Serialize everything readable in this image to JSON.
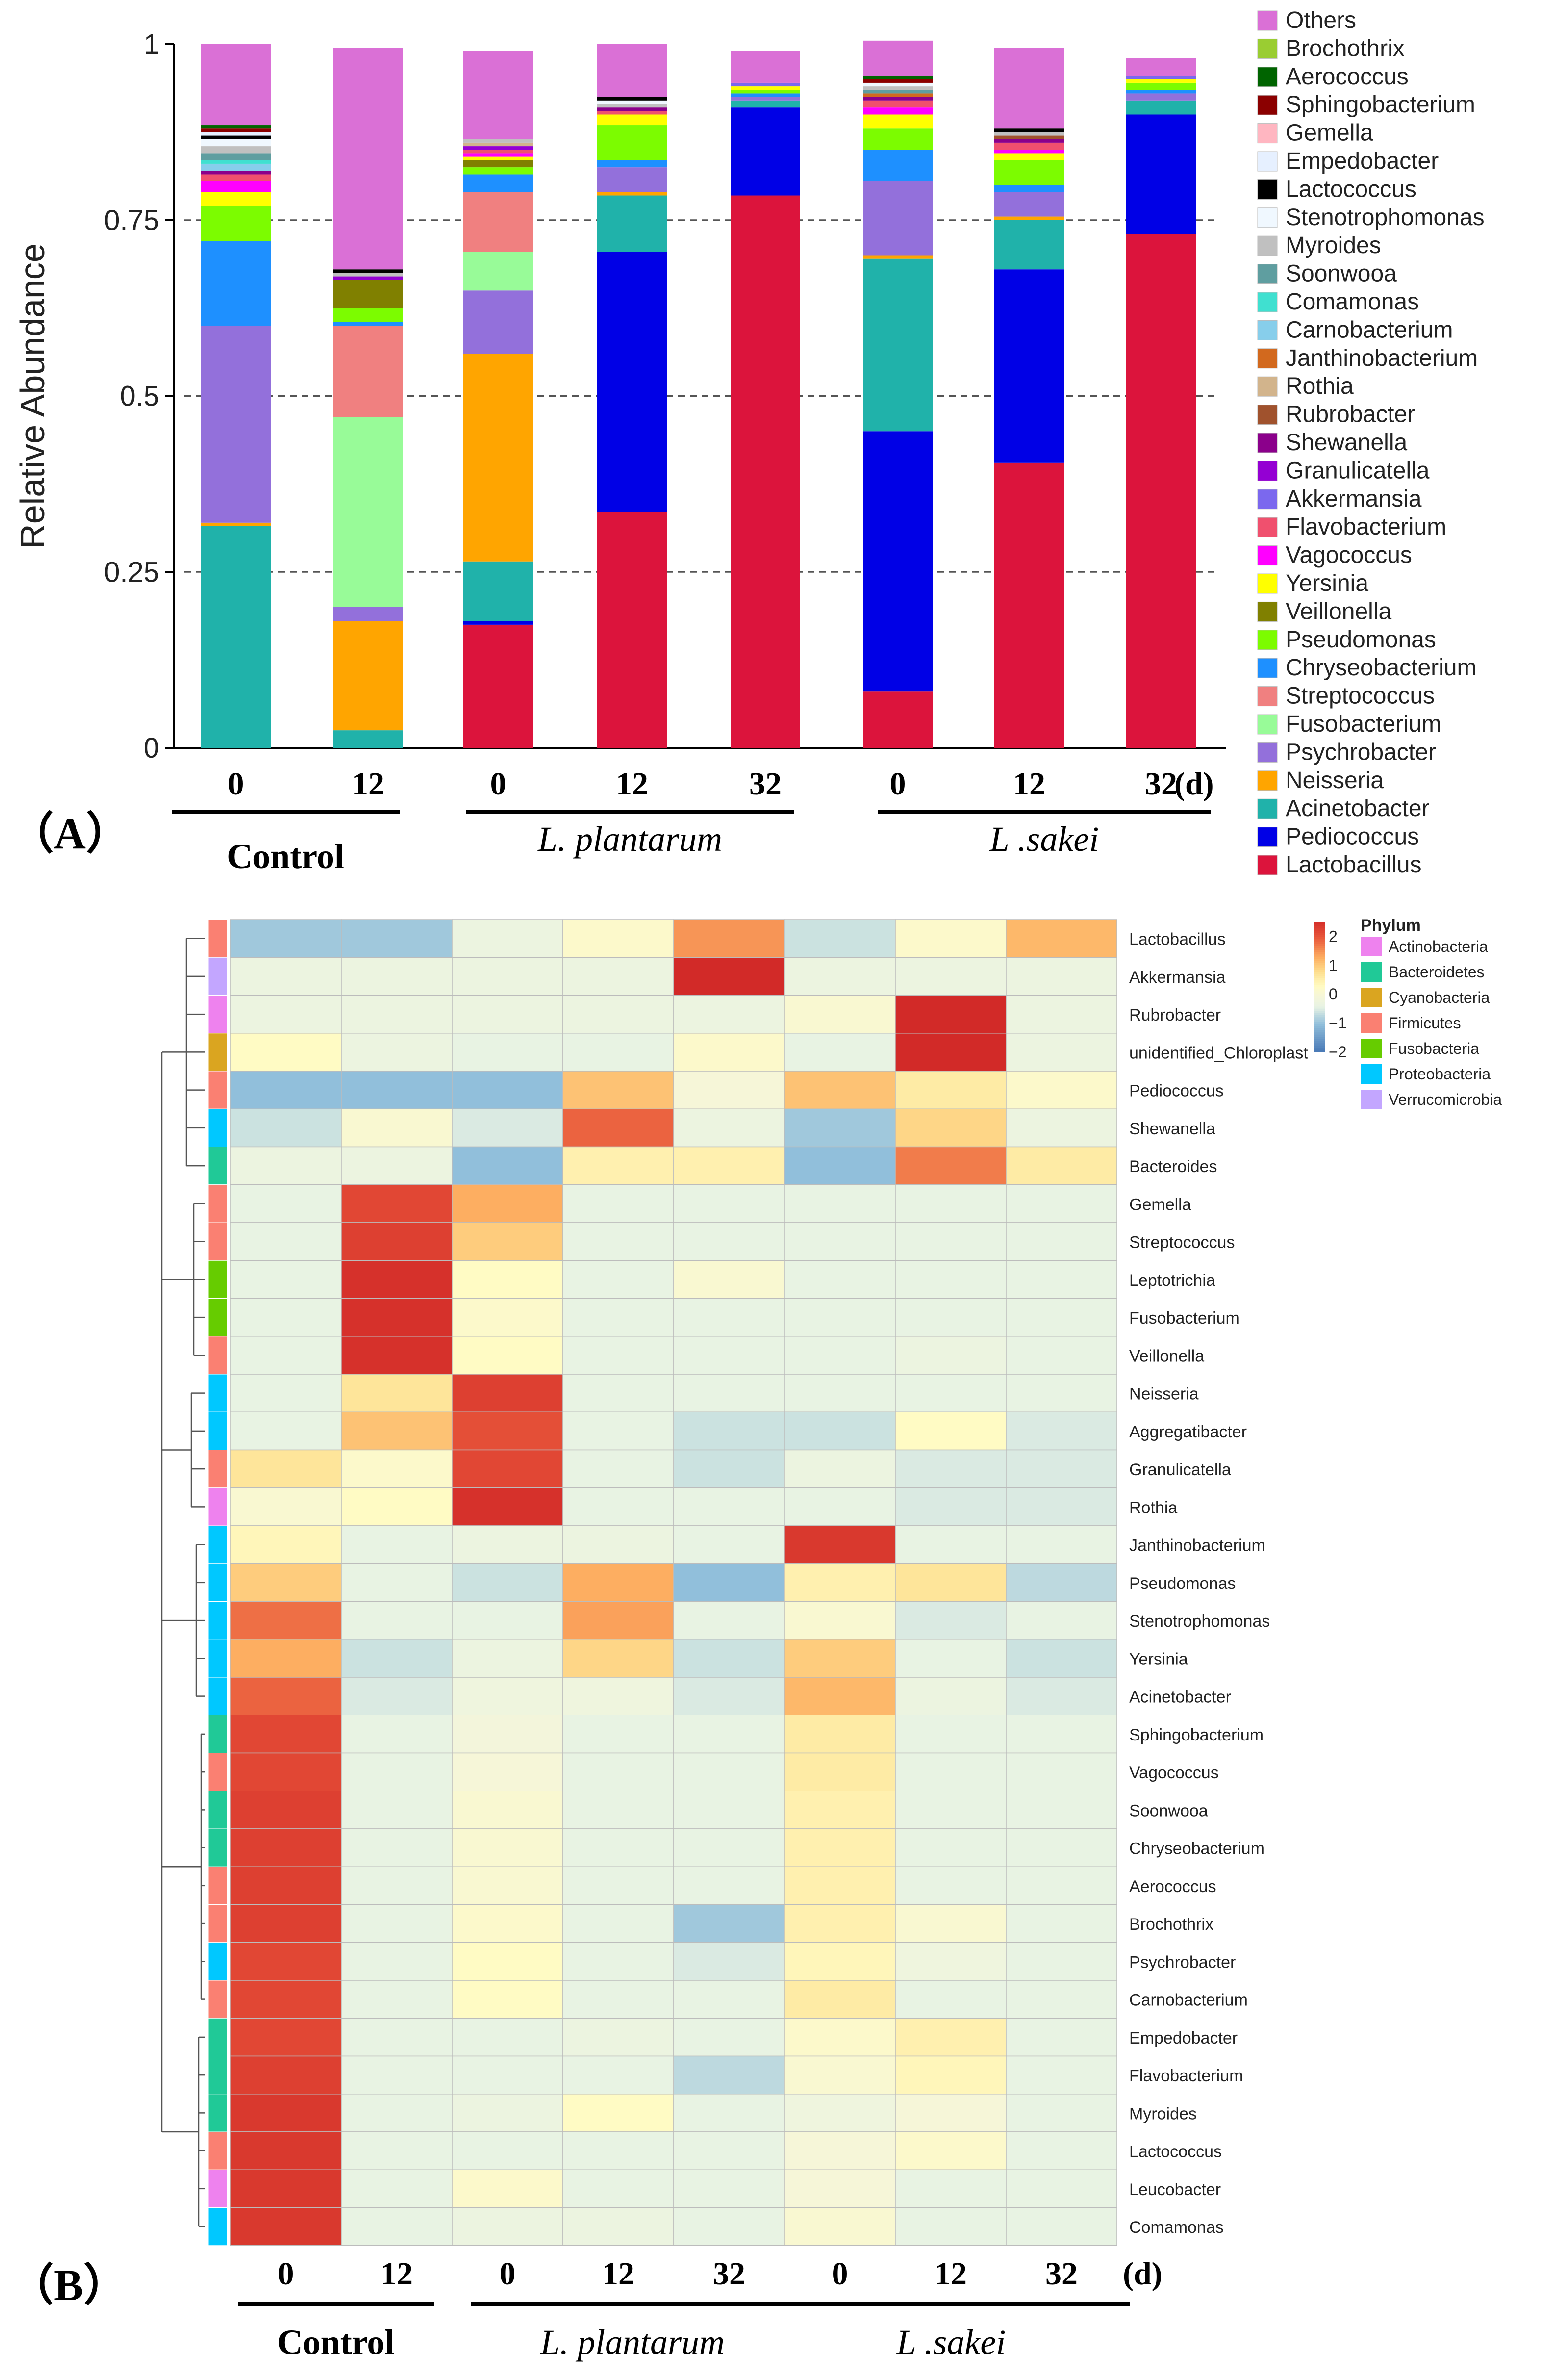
{
  "chart_data": [
    {
      "type": "bar",
      "stacked": true,
      "panel_label": "（A）",
      "ylabel": "Relative Abundance",
      "ylim": [
        0,
        1
      ],
      "yticks": [
        "0",
        "0.25",
        "0.5",
        "0.75",
        "1"
      ],
      "ytick_values": [
        0,
        0.25,
        0.5,
        0.75,
        1
      ],
      "gridlines_dashed": [
        0.25,
        0.5,
        0.75
      ],
      "day_unit": "(d)",
      "categories": [
        "0",
        "12",
        "0",
        "12",
        "32",
        "0",
        "12",
        "32"
      ],
      "groups": [
        {
          "label": "Control",
          "italic": false,
          "bars": [
            0,
            1
          ]
        },
        {
          "label": "L. plantarum",
          "italic": true,
          "bars": [
            2,
            3,
            4
          ]
        },
        {
          "label": "L .sakei",
          "italic": true,
          "bars": [
            5,
            6,
            7
          ]
        }
      ],
      "legend_position": "right",
      "series": [
        {
          "name": "Lactobacillus",
          "color": "#dc143c",
          "values": [
            0,
            0,
            0.175,
            0.335,
            0.785,
            0.08,
            0.405,
            0.73
          ]
        },
        {
          "name": "Pediococcus",
          "color": "#0000e6",
          "values": [
            0,
            0,
            0.005,
            0.37,
            0.125,
            0.37,
            0.275,
            0.17
          ]
        },
        {
          "name": "Acinetobacter",
          "color": "#20b2aa",
          "values": [
            0.315,
            0.025,
            0.085,
            0.08,
            0.01,
            0.245,
            0.07,
            0.02
          ]
        },
        {
          "name": "Neisseria",
          "color": "#ffa500",
          "values": [
            0.005,
            0.155,
            0.295,
            0.005,
            0,
            0.005,
            0.005,
            0
          ]
        },
        {
          "name": "Psychrobacter",
          "color": "#9370db",
          "values": [
            0.28,
            0.02,
            0.09,
            0.035,
            0.005,
            0.105,
            0.035,
            0.01
          ]
        },
        {
          "name": "Fusobacterium",
          "color": "#98fb98",
          "values": [
            0,
            0.27,
            0.055,
            0,
            0,
            0,
            0,
            0
          ]
        },
        {
          "name": "Streptococcus",
          "color": "#f08080",
          "values": [
            0,
            0.13,
            0.085,
            0,
            0,
            0,
            0,
            0
          ]
        },
        {
          "name": "Chryseobacterium",
          "color": "#1e90ff",
          "values": [
            0.12,
            0.005,
            0.025,
            0.01,
            0.005,
            0.045,
            0.01,
            0.005
          ]
        },
        {
          "name": "Pseudomonas",
          "color": "#7cfc00",
          "values": [
            0.05,
            0.02,
            0.01,
            0.05,
            0.005,
            0.03,
            0.035,
            0.01
          ]
        },
        {
          "name": "Veillonella",
          "color": "#808000",
          "values": [
            0,
            0.04,
            0.01,
            0,
            0,
            0,
            0,
            0
          ]
        },
        {
          "name": "Yersinia",
          "color": "#ffff00",
          "values": [
            0.02,
            0,
            0.005,
            0.015,
            0.005,
            0.02,
            0.01,
            0.005
          ]
        },
        {
          "name": "Vagococcus",
          "color": "#ff00ff",
          "values": [
            0.015,
            0,
            0.005,
            0,
            0,
            0.01,
            0.005,
            0
          ]
        },
        {
          "name": "Flavobacterium",
          "color": "#f0506e",
          "values": [
            0.01,
            0,
            0.005,
            0.005,
            0,
            0.01,
            0.01,
            0
          ]
        },
        {
          "name": "Akkermansia",
          "color": "#7b68ee",
          "values": [
            0,
            0,
            0,
            0,
            0.005,
            0,
            0,
            0.005
          ]
        },
        {
          "name": "Granulicatella",
          "color": "#9400d3",
          "values": [
            0,
            0.005,
            0.005,
            0,
            0,
            0,
            0,
            0
          ]
        },
        {
          "name": "Shewanella",
          "color": "#8b008b",
          "values": [
            0.005,
            0,
            0,
            0.005,
            0,
            0.005,
            0.005,
            0
          ]
        },
        {
          "name": "Rubrobacter",
          "color": "#a0522d",
          "values": [
            0,
            0,
            0,
            0,
            0,
            0,
            0.005,
            0
          ]
        },
        {
          "name": "Rothia",
          "color": "#d2b48c",
          "values": [
            0,
            0,
            0.005,
            0,
            0,
            0,
            0,
            0
          ]
        },
        {
          "name": "Janthinobacterium",
          "color": "#d2691e",
          "values": [
            0,
            0,
            0,
            0,
            0,
            0.005,
            0,
            0
          ]
        },
        {
          "name": "Carnobacterium",
          "color": "#87ceeb",
          "values": [
            0.01,
            0,
            0,
            0,
            0,
            0,
            0,
            0
          ]
        },
        {
          "name": "Comamonas",
          "color": "#40e0d0",
          "values": [
            0.005,
            0,
            0,
            0,
            0,
            0,
            0,
            0
          ]
        },
        {
          "name": "Soonwooa",
          "color": "#5f9ea0",
          "values": [
            0.01,
            0,
            0,
            0,
            0,
            0.005,
            0,
            0
          ]
        },
        {
          "name": "Myroides",
          "color": "#c0c0c0",
          "values": [
            0.01,
            0.005,
            0.005,
            0.005,
            0,
            0.005,
            0.005,
            0
          ]
        },
        {
          "name": "Stenotrophomonas",
          "color": "#f0f8ff",
          "values": [
            0.01,
            0,
            0,
            0.005,
            0,
            0.005,
            0,
            0
          ]
        },
        {
          "name": "Lactococcus",
          "color": "#000000",
          "values": [
            0.005,
            0.005,
            0,
            0.005,
            0,
            0,
            0.005,
            0
          ]
        },
        {
          "name": "Empedobacter",
          "color": "#e6f0ff",
          "values": [
            0.005,
            0,
            0,
            0,
            0,
            0,
            0,
            0
          ]
        },
        {
          "name": "Gemella",
          "color": "#ffb6c1",
          "values": [
            0,
            0,
            0,
            0,
            0,
            0,
            0,
            0
          ]
        },
        {
          "name": "Sphingobacterium",
          "color": "#8b0000",
          "values": [
            0.005,
            0,
            0,
            0,
            0,
            0.005,
            0,
            0
          ]
        },
        {
          "name": "Aerococcus",
          "color": "#006400",
          "values": [
            0.005,
            0,
            0,
            0,
            0,
            0.005,
            0,
            0
          ]
        },
        {
          "name": "Brochothrix",
          "color": "#9acd32",
          "values": [
            0,
            0,
            0,
            0,
            0,
            0,
            0,
            0
          ]
        },
        {
          "name": "Others",
          "color": "#da70d6",
          "values": [
            0.115,
            0.315,
            0.125,
            0.075,
            0.045,
            0.05,
            0.115,
            0.025
          ]
        }
      ]
    },
    {
      "type": "heatmap",
      "panel_label": "（B）",
      "color_scale": {
        "min": -2,
        "max": 2.5,
        "ticks": [
          "2",
          "1",
          "0",
          "−1",
          "−2"
        ],
        "tick_values": [
          2,
          1,
          0,
          -1,
          -2
        ]
      },
      "columns": [
        "0",
        "12",
        "0",
        "12",
        "32",
        "0",
        "12",
        "32"
      ],
      "day_unit": "(d)",
      "groups": [
        {
          "label": "Control",
          "italic": false,
          "columns": [
            0,
            1
          ]
        },
        {
          "label": "L. plantarum",
          "italic": true,
          "columns": [
            2,
            3,
            4
          ]
        },
        {
          "label": "L .sakei",
          "italic": true,
          "columns": [
            5,
            6,
            7
          ]
        }
      ],
      "phylum_legend_title": "Phylum",
      "phyla": [
        {
          "name": "Actinobacteria",
          "color": "#ee82ee"
        },
        {
          "name": "Bacteroidetes",
          "color": "#20c997"
        },
        {
          "name": "Cyanobacteria",
          "color": "#daa520"
        },
        {
          "name": "Firmicutes",
          "color": "#fa8072"
        },
        {
          "name": "Fusobacteria",
          "color": "#66cc00"
        },
        {
          "name": "Proteobacteria",
          "color": "#00c8ff"
        },
        {
          "name": "Verrucomicrobia",
          "color": "#c3a6ff"
        }
      ],
      "rows": [
        {
          "genus": "Lactobacillus",
          "phylum": "Firmicutes",
          "values": [
            -0.9,
            -0.9,
            -0.3,
            0.2,
            1.5,
            -0.6,
            0.2,
            1.2
          ]
        },
        {
          "genus": "Akkermansia",
          "phylum": "Verrucomicrobia",
          "values": [
            -0.3,
            -0.3,
            -0.3,
            -0.3,
            2.6,
            -0.3,
            -0.3,
            -0.3
          ]
        },
        {
          "genus": "Rubrobacter",
          "phylum": "Actinobacteria",
          "values": [
            -0.3,
            -0.3,
            -0.3,
            -0.3,
            -0.3,
            0.1,
            2.6,
            -0.3
          ]
        },
        {
          "genus": "unidentified_Chloroplast",
          "phylum": "Cyanobacteria",
          "values": [
            0.3,
            -0.3,
            -0.4,
            -0.4,
            0.2,
            -0.4,
            2.6,
            -0.3
          ]
        },
        {
          "genus": "Pediococcus",
          "phylum": "Firmicutes",
          "values": [
            -1.0,
            -1.0,
            -1.0,
            1.1,
            0.0,
            1.1,
            0.6,
            0.2
          ]
        },
        {
          "genus": "Shewanella",
          "phylum": "Proteobacteria",
          "values": [
            -0.6,
            0.1,
            -0.5,
            1.9,
            -0.3,
            -0.9,
            0.9,
            -0.3
          ]
        },
        {
          "genus": "Bacteroides",
          "phylum": "Bacteroidetes",
          "values": [
            -0.3,
            -0.3,
            -1.0,
            0.5,
            0.5,
            -1.0,
            1.7,
            0.6
          ]
        },
        {
          "genus": "Gemella",
          "phylum": "Firmicutes",
          "values": [
            -0.4,
            2.2,
            1.3,
            -0.4,
            -0.4,
            -0.4,
            -0.4,
            -0.4
          ]
        },
        {
          "genus": "Streptococcus",
          "phylum": "Firmicutes",
          "values": [
            -0.4,
            2.3,
            1.0,
            -0.4,
            -0.4,
            -0.4,
            -0.4,
            -0.4
          ]
        },
        {
          "genus": "Leptotrichia",
          "phylum": "Fusobacteria",
          "values": [
            -0.4,
            2.5,
            0.3,
            -0.4,
            0.1,
            -0.4,
            -0.4,
            -0.4
          ]
        },
        {
          "genus": "Fusobacterium",
          "phylum": "Fusobacteria",
          "values": [
            -0.4,
            2.5,
            0.2,
            -0.4,
            -0.4,
            -0.4,
            -0.4,
            -0.4
          ]
        },
        {
          "genus": "Veillonella",
          "phylum": "Firmicutes",
          "values": [
            -0.4,
            2.5,
            0.3,
            -0.4,
            -0.4,
            -0.4,
            -0.3,
            -0.4
          ]
        },
        {
          "genus": "Neisseria",
          "phylum": "Proteobacteria",
          "values": [
            -0.4,
            0.7,
            2.3,
            -0.4,
            -0.4,
            -0.4,
            -0.4,
            -0.4
          ]
        },
        {
          "genus": "Aggregatibacter",
          "phylum": "Proteobacteria",
          "values": [
            -0.4,
            1.1,
            2.1,
            -0.4,
            -0.6,
            -0.6,
            0.3,
            -0.5
          ]
        },
        {
          "genus": "Granulicatella",
          "phylum": "Firmicutes",
          "values": [
            0.7,
            0.2,
            2.2,
            -0.4,
            -0.6,
            -0.3,
            -0.5,
            -0.5
          ]
        },
        {
          "genus": "Rothia",
          "phylum": "Actinobacteria",
          "values": [
            0.1,
            0.3,
            2.5,
            -0.4,
            -0.4,
            -0.4,
            -0.5,
            -0.5
          ]
        },
        {
          "genus": "Janthinobacterium",
          "phylum": "Proteobacteria",
          "values": [
            0.4,
            -0.4,
            -0.3,
            -0.3,
            -0.4,
            2.4,
            -0.4,
            -0.4
          ]
        },
        {
          "genus": "Pseudomonas",
          "phylum": "Proteobacteria",
          "values": [
            1.0,
            -0.4,
            -0.6,
            1.3,
            -1.0,
            0.5,
            0.7,
            -0.7
          ]
        },
        {
          "genus": "Stenotrophomonas",
          "phylum": "Proteobacteria",
          "values": [
            1.8,
            -0.4,
            -0.4,
            1.4,
            -0.4,
            0.1,
            -0.5,
            -0.4
          ]
        },
        {
          "genus": "Yersinia",
          "phylum": "Proteobacteria",
          "values": [
            1.3,
            -0.6,
            -0.3,
            0.9,
            -0.6,
            1.0,
            -0.4,
            -0.6
          ]
        },
        {
          "genus": "Acinetobacter",
          "phylum": "Proteobacteria",
          "values": [
            1.9,
            -0.5,
            -0.2,
            -0.2,
            -0.5,
            1.2,
            -0.3,
            -0.5
          ]
        },
        {
          "genus": "Sphingobacterium",
          "phylum": "Bacteroidetes",
          "values": [
            2.2,
            -0.4,
            -0.1,
            -0.4,
            -0.4,
            0.6,
            -0.4,
            -0.4
          ]
        },
        {
          "genus": "Vagococcus",
          "phylum": "Firmicutes",
          "values": [
            2.2,
            -0.4,
            0.0,
            -0.4,
            -0.4,
            0.6,
            -0.4,
            -0.4
          ]
        },
        {
          "genus": "Soonwooa",
          "phylum": "Bacteroidetes",
          "values": [
            2.3,
            -0.4,
            0.1,
            -0.4,
            -0.4,
            0.5,
            -0.4,
            -0.4
          ]
        },
        {
          "genus": "Chryseobacterium",
          "phylum": "Bacteroidetes",
          "values": [
            2.3,
            -0.4,
            0.1,
            -0.4,
            -0.4,
            0.5,
            -0.4,
            -0.4
          ]
        },
        {
          "genus": "Aerococcus",
          "phylum": "Firmicutes",
          "values": [
            2.3,
            -0.4,
            0.1,
            -0.4,
            -0.4,
            0.5,
            -0.4,
            -0.4
          ]
        },
        {
          "genus": "Brochothrix",
          "phylum": "Firmicutes",
          "values": [
            2.3,
            -0.4,
            0.2,
            -0.4,
            -0.9,
            0.5,
            0.1,
            -0.4
          ]
        },
        {
          "genus": "Psychrobacter",
          "phylum": "Proteobacteria",
          "values": [
            2.2,
            -0.4,
            0.3,
            -0.4,
            -0.5,
            0.4,
            -0.2,
            -0.4
          ]
        },
        {
          "genus": "Carnobacterium",
          "phylum": "Firmicutes",
          "values": [
            2.2,
            -0.4,
            0.3,
            -0.4,
            -0.4,
            0.6,
            -0.4,
            -0.4
          ]
        },
        {
          "genus": "Empedobacter",
          "phylum": "Bacteroidetes",
          "values": [
            2.2,
            -0.4,
            -0.4,
            -0.3,
            -0.4,
            0.2,
            0.5,
            -0.4
          ]
        },
        {
          "genus": "Flavobacterium",
          "phylum": "Bacteroidetes",
          "values": [
            2.3,
            -0.4,
            -0.4,
            -0.4,
            -0.7,
            0.1,
            0.4,
            -0.4
          ]
        },
        {
          "genus": "Myroides",
          "phylum": "Bacteroidetes",
          "values": [
            2.4,
            -0.4,
            -0.3,
            0.3,
            -0.4,
            -0.2,
            0.0,
            -0.4
          ]
        },
        {
          "genus": "Lactococcus",
          "phylum": "Firmicutes",
          "values": [
            2.4,
            -0.4,
            -0.4,
            -0.4,
            -0.4,
            0.0,
            0.2,
            -0.4
          ]
        },
        {
          "genus": "Leucobacter",
          "phylum": "Actinobacteria",
          "values": [
            2.4,
            -0.4,
            0.2,
            -0.4,
            -0.4,
            0.0,
            -0.4,
            -0.4
          ]
        },
        {
          "genus": "Comamonas",
          "phylum": "Proteobacteria",
          "values": [
            2.4,
            -0.4,
            -0.3,
            -0.3,
            -0.4,
            0.1,
            -0.4,
            -0.4
          ]
        }
      ]
    }
  ]
}
